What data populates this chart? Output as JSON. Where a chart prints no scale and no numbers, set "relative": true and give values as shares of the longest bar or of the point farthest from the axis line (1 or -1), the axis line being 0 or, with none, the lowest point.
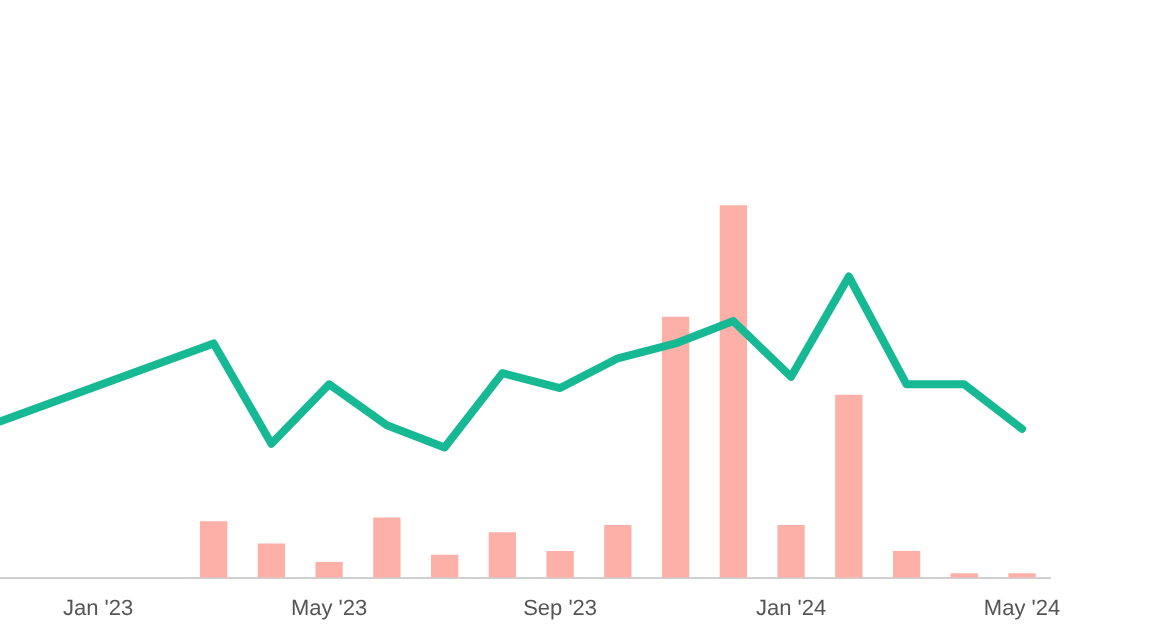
{
  "chart_data": {
    "type": "bar",
    "relative": true,
    "legend": false,
    "marker": "none",
    "line_style": "solid",
    "xlim": [
      "2022-11-10",
      "2024-05-16"
    ],
    "xticks": [
      {
        "value": "2023-01",
        "label": "Jan '23"
      },
      {
        "value": "2023-05",
        "label": "May '23"
      },
      {
        "value": "2023-09",
        "label": "Sep '23"
      },
      {
        "value": "2024-01",
        "label": "Jan '24"
      },
      {
        "value": "2024-05",
        "label": "May '24"
      }
    ],
    "series": [
      {
        "color": "#fdb0a8",
        "x": [
          "2023-03",
          "2023-04",
          "2023-05",
          "2023-06",
          "2023-07",
          "2023-08",
          "2023-09",
          "2023-10",
          "2023-11",
          "2023-12",
          "2024-01",
          "2024-02",
          "2024-03",
          "2024-04",
          "2024-05"
        ],
        "values": [
          0.15,
          0.09,
          0.04,
          0.16,
          0.06,
          0.12,
          0.07,
          0.14,
          0.7,
          1,
          0.14,
          0.49,
          0.07,
          0.01,
          0.01
        ]
      },
      {
        "type": "line",
        "color": "#17b994",
        "x": [
          "2022-11-10",
          "2023-03",
          "2023-04",
          "2023-05",
          "2023-06",
          "2023-07",
          "2023-08",
          "2023-09",
          "2023-10",
          "2023-11",
          "2023-12",
          "2024-01",
          "2024-02",
          "2024-03",
          "2024-04",
          "2024-05"
        ],
        "values": [
          0.42,
          0.63,
          0.36,
          0.52,
          0.41,
          0.35,
          0.55,
          0.51,
          0.59,
          0.63,
          0.69,
          0.54,
          0.81,
          0.52,
          0.52,
          0.4
        ]
      }
    ]
  }
}
